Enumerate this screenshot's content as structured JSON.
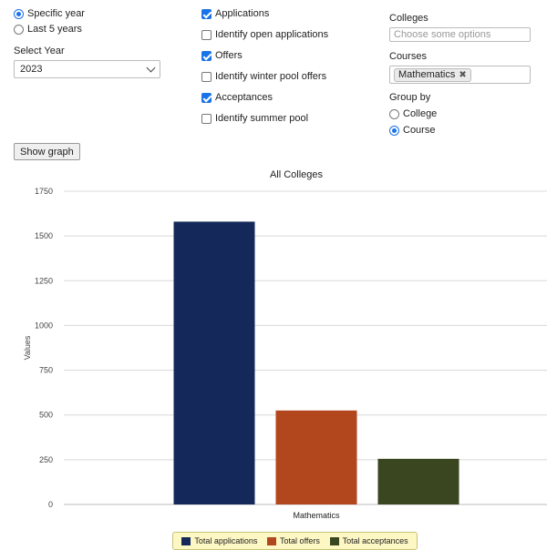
{
  "time_mode": {
    "options": [
      {
        "label": "Specific year",
        "checked": true
      },
      {
        "label": "Last 5 years",
        "checked": false
      }
    ]
  },
  "year_select": {
    "label": "Select Year",
    "value": "2023"
  },
  "metrics": {
    "options": [
      {
        "label": "Applications",
        "checked": true
      },
      {
        "label": "Identify open applications",
        "checked": false
      },
      {
        "label": "Offers",
        "checked": true
      },
      {
        "label": "Identify winter pool offers",
        "checked": false
      },
      {
        "label": "Acceptances",
        "checked": true
      },
      {
        "label": "Identify summer pool",
        "checked": false
      }
    ]
  },
  "colleges": {
    "label": "Colleges",
    "placeholder": "Choose some options"
  },
  "courses": {
    "label": "Courses",
    "selected_tag": "Mathematics",
    "remove_symbol": "✖"
  },
  "group_by": {
    "label": "Group by",
    "options": [
      {
        "label": "College",
        "checked": false
      },
      {
        "label": "Course",
        "checked": true
      }
    ]
  },
  "show_graph_button": "Show graph",
  "chart_data": {
    "type": "bar",
    "title": "All Colleges",
    "ylabel": "Values",
    "xlabel": "",
    "categories": [
      "Mathematics"
    ],
    "ylim": [
      0,
      1750
    ],
    "yticks": [
      0,
      250,
      500,
      750,
      1000,
      1250,
      1500,
      1750
    ],
    "grid": true,
    "legend_position": "bottom",
    "series": [
      {
        "name": "Total applications",
        "values": [
          1580
        ],
        "color": "#14295a"
      },
      {
        "name": "Total offers",
        "values": [
          525
        ],
        "color": "#b2461d"
      },
      {
        "name": "Total acceptances",
        "values": [
          255
        ],
        "color": "#3a4620"
      }
    ]
  }
}
